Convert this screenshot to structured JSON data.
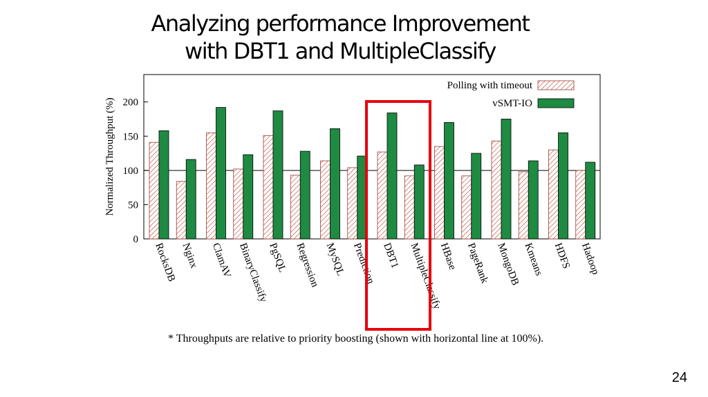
{
  "slide": {
    "title_line1": "Analyzing performance Improvement",
    "title_line2": "with DBT1 and MultipleClassify",
    "footnote": "* Throughputs are relative to priority boosting (shown with horizontal line at 100%).",
    "page_number": "24"
  },
  "chart_data": {
    "type": "bar",
    "categories": [
      "RocksDB",
      "Nginx",
      "ClamAV",
      "BinaryClassify",
      "PgSQL",
      "Regression",
      "MySQL",
      "Prediction",
      "DBT1",
      "MultipleClassify",
      "HBase",
      "PageRank",
      "MongoDB",
      "Kmeans",
      "HDFS",
      "Hadoop"
    ],
    "series": [
      {
        "name": "Polling with timeout",
        "values": [
          141,
          84,
          155,
          102,
          151,
          93,
          114,
          104,
          127,
          92,
          135,
          92,
          143,
          98,
          130,
          100
        ]
      },
      {
        "name": "vSMT-IO",
        "values": [
          158,
          116,
          192,
          123,
          187,
          128,
          161,
          121,
          184,
          108,
          170,
          125,
          175,
          114,
          155,
          112
        ]
      }
    ],
    "xlabel": "",
    "ylabel": "Normalized Throughput (%)",
    "ylim": [
      0,
      240
    ],
    "yticks": [
      0,
      50,
      100,
      150,
      200
    ],
    "reference_line": 100,
    "legend_position": "top-right",
    "highlight": [
      "DBT1",
      "MultipleClassify"
    ],
    "colors": {
      "polling_hatch": "#c0392b",
      "vsmt": "#1e8a42",
      "highlight_box": "#e8000b"
    }
  }
}
